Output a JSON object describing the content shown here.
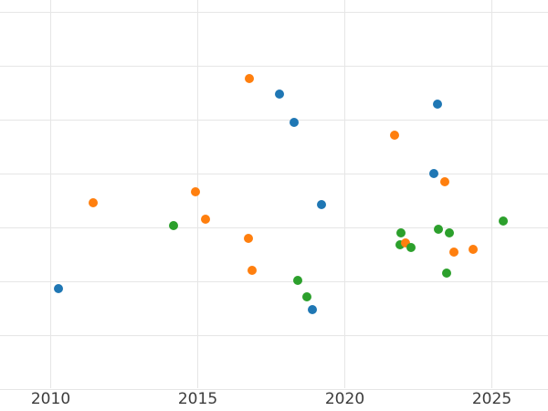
{
  "figure": {
    "background_color": "#ffffff",
    "grid_color": "#e6e6e6",
    "tick_label_color": "#3c3c3c"
  },
  "chart_data": {
    "type": "scatter",
    "title": "",
    "xlabel": "",
    "ylabel": "",
    "x_tick_labels": [
      "2010",
      "2015",
      "2020",
      "2025"
    ],
    "x_ticks": [
      2010,
      2015,
      2020,
      2025
    ],
    "x_visible_range": [
      2008.3,
      2026.9
    ],
    "y_tick_labels": [],
    "y_axis_note": "y axis unlabeled in image; y values given in gridline units (0 = bottom visible gridline, 1 unit = one gridline spacing, 8 gridlines visible)",
    "y_visible_range": [
      0,
      7
    ],
    "grid": true,
    "legend_position": "none",
    "marker_size_px": 10,
    "series": [
      {
        "name": "blue",
        "color": "#1f77b4",
        "points": [
          [
            2010.27,
            1.87
          ],
          [
            2017.79,
            5.48
          ],
          [
            2018.29,
            4.95
          ],
          [
            2018.9,
            1.47
          ],
          [
            2019.21,
            3.42
          ],
          [
            2023.02,
            4.0
          ],
          [
            2023.16,
            5.28
          ]
        ]
      },
      {
        "name": "orange",
        "color": "#ff7f0e",
        "points": [
          [
            2011.44,
            3.45
          ],
          [
            2014.91,
            3.66
          ],
          [
            2015.25,
            3.16
          ],
          [
            2016.72,
            2.8
          ],
          [
            2016.74,
            5.77
          ],
          [
            2016.86,
            2.2
          ],
          [
            2021.7,
            4.71
          ],
          [
            2022.08,
            2.72
          ],
          [
            2023.39,
            3.85
          ],
          [
            2023.72,
            2.54
          ],
          [
            2024.37,
            2.59
          ]
        ]
      },
      {
        "name": "green",
        "color": "#2ca02c",
        "points": [
          [
            2014.18,
            3.04
          ],
          [
            2018.4,
            2.01
          ],
          [
            2018.71,
            1.72
          ],
          [
            2021.89,
            2.68
          ],
          [
            2021.9,
            2.9
          ],
          [
            2022.25,
            2.63
          ],
          [
            2023.18,
            2.97
          ],
          [
            2023.46,
            2.15
          ],
          [
            2023.57,
            2.89
          ],
          [
            2025.38,
            3.12
          ]
        ]
      }
    ]
  }
}
